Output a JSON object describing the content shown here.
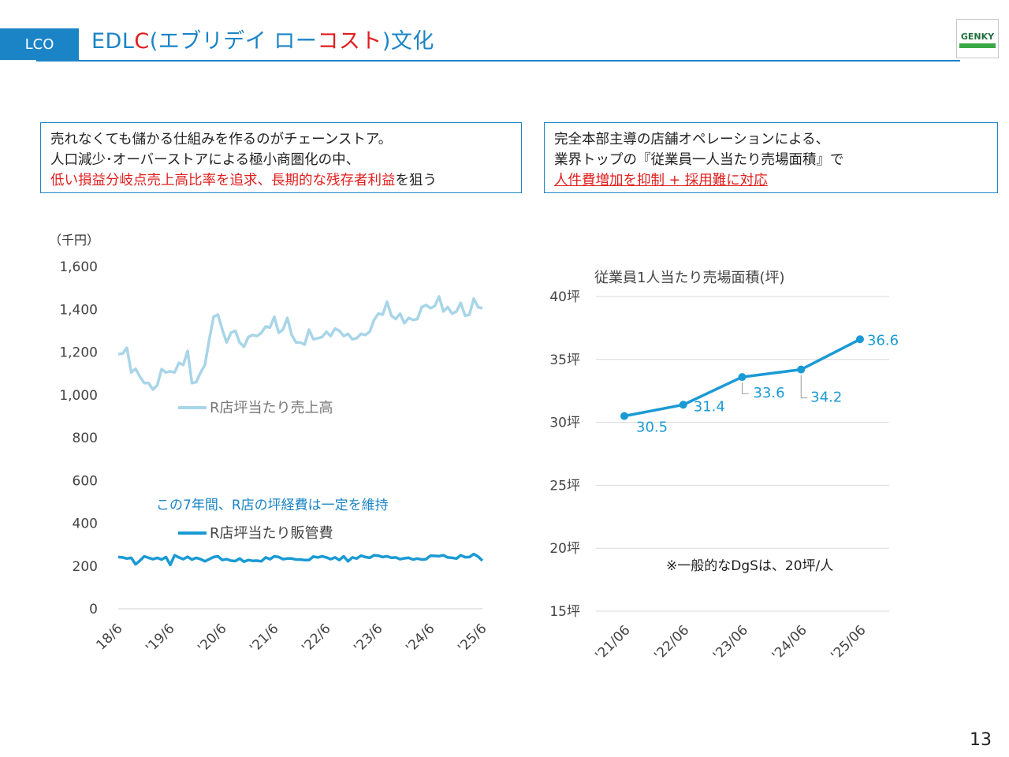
{
  "header": {
    "tag": "LCO",
    "title_part1": "EDL",
    "title_c": "C",
    "title_part2": "(エブリデイ ロー",
    "title_cost": "コスト",
    "title_part3": ")文化",
    "logo_text": "GENKY"
  },
  "left_box": {
    "line1": "売れなくても儲かる仕組みを作るのがチェーンストア。",
    "line2": "人口減少･オーバーストアによる極小商圏化の中、",
    "line3_red": "低い損益分岐点売上高比率を追求、長期的な残存者利益",
    "line3_rest": "を狙う"
  },
  "right_box": {
    "line1": "完全本部主導の店舗オペレーションによる、",
    "line2": "業界トップの『従業員一人当たり売場面積』で",
    "line3_red": "人件費増加を抑制 + 採用難に対応"
  },
  "page_number": "13",
  "chart_data": [
    {
      "type": "line",
      "ylabel": "（千円）",
      "ylim": [
        0,
        1600
      ],
      "yticks": [
        "0",
        "200",
        "400",
        "600",
        "800",
        "1,000",
        "1,200",
        "1,400",
        "1,600"
      ],
      "x_tick_labels": [
        "18/6",
        "'19/6",
        "'20/6",
        "'21/6",
        "'22/6",
        "'23/6",
        "'24/6",
        "'25/6"
      ],
      "annotation": "この7年間、R店の坪経費は一定を維持",
      "legend": [
        "R店坪当たり売上高",
        "R店坪当たり販管費"
      ],
      "colors": {
        "sales": "#a8d5e8",
        "cost": "#1a9ad4"
      },
      "series": [
        {
          "name": "R店坪当たり売上高",
          "values": [
            1190,
            1193,
            1220,
            1105,
            1122,
            1085,
            1055,
            1055,
            1025,
            1045,
            1120,
            1105,
            1110,
            1105,
            1150,
            1140,
            1205,
            1055,
            1060,
            1105,
            1140,
            1260,
            1365,
            1375,
            1305,
            1245,
            1290,
            1300,
            1245,
            1225,
            1270,
            1280,
            1275,
            1290,
            1320,
            1315,
            1365,
            1290,
            1305,
            1360,
            1280,
            1245,
            1245,
            1235,
            1305,
            1260,
            1265,
            1270,
            1295,
            1275,
            1310,
            1300,
            1275,
            1285,
            1260,
            1265,
            1285,
            1280,
            1295,
            1350,
            1380,
            1375,
            1435,
            1370,
            1355,
            1380,
            1335,
            1360,
            1350,
            1355,
            1410,
            1420,
            1405,
            1415,
            1460,
            1390,
            1410,
            1380,
            1390,
            1430,
            1370,
            1375,
            1450,
            1410,
            1405
          ]
        },
        {
          "name": "R店坪当たり販管費",
          "values": [
            242,
            240,
            235,
            238,
            208,
            225,
            245,
            238,
            232,
            238,
            230,
            242,
            205,
            250,
            240,
            232,
            243,
            230,
            238,
            232,
            222,
            232,
            242,
            245,
            228,
            232,
            225,
            223,
            235,
            220,
            228,
            224,
            225,
            222,
            240,
            232,
            245,
            242,
            232,
            235,
            235,
            230,
            230,
            228,
            228,
            244,
            240,
            245,
            240,
            232,
            240,
            228,
            245,
            222,
            240,
            235,
            248,
            242,
            238,
            250,
            248,
            242,
            245,
            238,
            240,
            232,
            236,
            238,
            230,
            235,
            230,
            232,
            248,
            247,
            246,
            250,
            240,
            238,
            235,
            250,
            241,
            242,
            256,
            244,
            225
          ]
        }
      ]
    },
    {
      "type": "line",
      "title": "従業員1人当たり売場面積(坪)",
      "categories": [
        "'21/06",
        "'22/06",
        "'23/06",
        "'24/06",
        "'25/06"
      ],
      "values": [
        30.5,
        31.4,
        33.6,
        34.2,
        36.6
      ],
      "data_labels": [
        "30.5",
        "31.4",
        "33.6",
        "34.2",
        "36.6"
      ],
      "ylim": [
        15,
        40
      ],
      "yticks": [
        "15坪",
        "20坪",
        "25坪",
        "30坪",
        "35坪",
        "40坪"
      ],
      "note": "※一般的なDgSは、20坪/人",
      "color": "#1a9ad4"
    }
  ]
}
